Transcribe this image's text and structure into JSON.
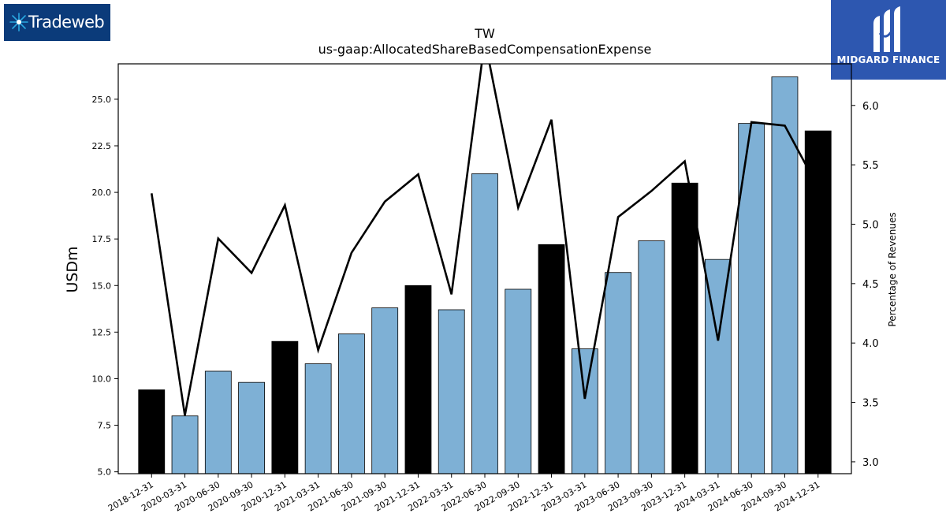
{
  "logos": {
    "left": {
      "text": "Tradeweb",
      "icon": "starburst-icon"
    },
    "right": {
      "text": "MIDGARD FINANCE",
      "icon": "midgard-m-icon"
    }
  },
  "colors": {
    "bar_quarter": "#7eb0d5",
    "bar_year_end": "#000000",
    "line": "#000000",
    "tradeweb_bg": "#0b3b7a",
    "midgard_bg": "#2d57b0"
  },
  "chart_data": {
    "type": "bar",
    "title": "TW",
    "subtitle": "us-gaap:AllocatedShareBasedCompensationExpense",
    "ylabel": "USDm",
    "y2label": "Percentage of Revenues",
    "categories": [
      "2018-12-31",
      "2020-03-31",
      "2020-06-30",
      "2020-09-30",
      "2020-12-31",
      "2021-03-31",
      "2021-06-30",
      "2021-09-30",
      "2021-12-31",
      "2022-03-31",
      "2022-06-30",
      "2022-09-30",
      "2022-12-31",
      "2023-03-31",
      "2023-06-30",
      "2023-09-30",
      "2023-12-31",
      "2024-03-31",
      "2024-06-30",
      "2024-09-30",
      "2024-12-31"
    ],
    "ylim": [
      4.9,
      26.9
    ],
    "y_ticks": [
      "5.0",
      "7.5",
      "10.0",
      "12.5",
      "15.0",
      "17.5",
      "20.0",
      "22.5",
      "25.0"
    ],
    "y2lim": [
      2.9,
      6.35
    ],
    "y2_ticks": [
      "3.0",
      "3.5",
      "4.0",
      "4.5",
      "5.0",
      "5.5",
      "6.0"
    ],
    "series": [
      {
        "kind": "bar",
        "values": [
          9.4,
          8.0,
          10.4,
          9.8,
          12.0,
          10.8,
          12.4,
          13.8,
          15.0,
          13.7,
          21.0,
          14.8,
          17.2,
          11.6,
          15.7,
          17.4,
          20.5,
          16.4,
          23.7,
          26.2,
          23.3
        ],
        "year_end": [
          true,
          false,
          false,
          false,
          true,
          false,
          false,
          false,
          true,
          false,
          false,
          false,
          true,
          false,
          false,
          false,
          true,
          false,
          false,
          false,
          true
        ]
      },
      {
        "kind": "line",
        "axis": "right",
        "values": [
          5.26,
          3.39,
          4.88,
          4.59,
          5.16,
          3.94,
          4.76,
          5.19,
          5.42,
          4.41,
          6.55,
          5.14,
          5.88,
          3.53,
          5.06,
          5.28,
          5.53,
          4.02,
          5.86,
          5.83,
          5.31
        ]
      }
    ]
  }
}
